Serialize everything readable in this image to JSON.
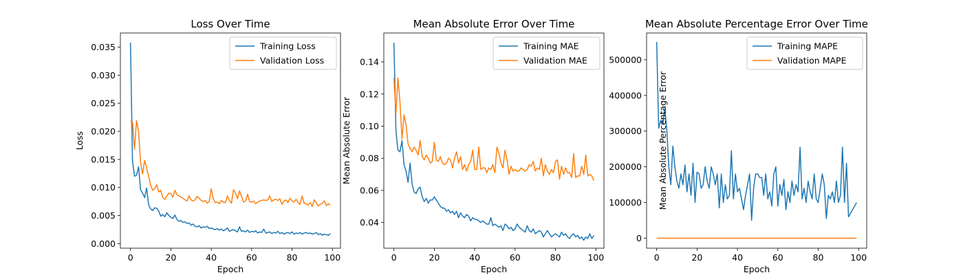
{
  "chart_data": [
    {
      "type": "line",
      "title": "Loss Over Time",
      "xlabel": "Epoch",
      "ylabel": "Loss",
      "xlim": [
        -5,
        104
      ],
      "ylim": [
        -0.0008,
        0.0375
      ],
      "xticks": [
        0,
        20,
        40,
        60,
        80,
        100
      ],
      "yticks": [
        0.0,
        0.005,
        0.01,
        0.015,
        0.02,
        0.025,
        0.03,
        0.035
      ],
      "ytick_labels": [
        "0.000",
        "0.005",
        "0.010",
        "0.015",
        "0.020",
        "0.025",
        "0.030",
        "0.035"
      ],
      "legend_position": "upper-right",
      "grid": false,
      "series": [
        {
          "name": "Training Loss",
          "color": "#1f77b4",
          "values": [
            0.0358,
            0.0148,
            0.012,
            0.0122,
            0.0137,
            0.0096,
            0.009,
            0.0082,
            0.0099,
            0.0069,
            0.0062,
            0.0059,
            0.0064,
            0.0063,
            0.0058,
            0.0049,
            0.0052,
            0.0048,
            0.0055,
            0.005,
            0.0047,
            0.0045,
            0.0051,
            0.0043,
            0.004,
            0.0041,
            0.0038,
            0.0039,
            0.0036,
            0.0037,
            0.0033,
            0.0035,
            0.0031,
            0.003,
            0.0032,
            0.0028,
            0.003,
            0.0029,
            0.0031,
            0.0027,
            0.0028,
            0.0026,
            0.0025,
            0.0027,
            0.0024,
            0.0026,
            0.0023,
            0.0025,
            0.0028,
            0.0022,
            0.0024,
            0.0025,
            0.0023,
            0.0021,
            0.003,
            0.0022,
            0.0023,
            0.0021,
            0.0024,
            0.002,
            0.0022,
            0.0021,
            0.0023,
            0.0019,
            0.0021,
            0.002,
            0.0026,
            0.0019,
            0.002,
            0.0021,
            0.0018,
            0.002,
            0.0019,
            0.0022,
            0.0018,
            0.002,
            0.0017,
            0.0019,
            0.002,
            0.0018,
            0.0021,
            0.0017,
            0.0019,
            0.0018,
            0.002,
            0.0017,
            0.0019,
            0.002,
            0.0018,
            0.0019,
            0.0017,
            0.0018,
            0.002,
            0.0016,
            0.0018,
            0.0015,
            0.0017,
            0.0016,
            0.0015,
            0.0018
          ]
        },
        {
          "name": "Validation Loss",
          "color": "#ff7f0e",
          "values": [
            0.0218,
            0.0216,
            0.0168,
            0.0219,
            0.02,
            0.0145,
            0.0124,
            0.0148,
            0.0135,
            0.012,
            0.0104,
            0.0095,
            0.0098,
            0.0105,
            0.0092,
            0.0095,
            0.0082,
            0.0079,
            0.0085,
            0.009,
            0.0089,
            0.0083,
            0.0095,
            0.0087,
            0.0085,
            0.0083,
            0.0081,
            0.0078,
            0.0076,
            0.0085,
            0.0078,
            0.0076,
            0.0078,
            0.0084,
            0.0081,
            0.0077,
            0.0075,
            0.0077,
            0.0072,
            0.0075,
            0.0098,
            0.008,
            0.0073,
            0.0074,
            0.0071,
            0.0077,
            0.0074,
            0.0073,
            0.0085,
            0.0077,
            0.0072,
            0.0096,
            0.009,
            0.008,
            0.0094,
            0.0084,
            0.0074,
            0.0076,
            0.0088,
            0.0075,
            0.0074,
            0.0076,
            0.0071,
            0.0074,
            0.0076,
            0.0077,
            0.0078,
            0.0077,
            0.0078,
            0.0085,
            0.0075,
            0.0078,
            0.0079,
            0.0077,
            0.008,
            0.007,
            0.0076,
            0.0078,
            0.0073,
            0.0081,
            0.0076,
            0.0074,
            0.0079,
            0.0073,
            0.007,
            0.0085,
            0.0072,
            0.0071,
            0.0069,
            0.0073,
            0.0066,
            0.0078,
            0.0073,
            0.0067,
            0.007,
            0.0072,
            0.0076,
            0.0068,
            0.0071,
            0.0069
          ]
        }
      ]
    },
    {
      "type": "line",
      "title": "Mean Absolute Error Over Time",
      "xlabel": "Epoch",
      "ylabel": "Mean Absolute Error",
      "xlim": [
        -5,
        104
      ],
      "ylim": [
        0.024,
        0.158
      ],
      "xticks": [
        0,
        20,
        40,
        60,
        80,
        100
      ],
      "yticks": [
        0.04,
        0.06,
        0.08,
        0.1,
        0.12,
        0.14
      ],
      "ytick_labels": [
        "0.04",
        "0.06",
        "0.08",
        "0.10",
        "0.12",
        "0.14"
      ],
      "legend_position": "upper-right",
      "grid": false,
      "series": [
        {
          "name": "Training MAE",
          "color": "#1f77b4",
          "values": [
            0.152,
            0.097,
            0.085,
            0.084,
            0.091,
            0.076,
            0.072,
            0.065,
            0.077,
            0.064,
            0.059,
            0.058,
            0.061,
            0.062,
            0.056,
            0.053,
            0.055,
            0.052,
            0.054,
            0.054,
            0.056,
            0.054,
            0.052,
            0.05,
            0.049,
            0.049,
            0.047,
            0.048,
            0.046,
            0.047,
            0.045,
            0.047,
            0.043,
            0.046,
            0.044,
            0.043,
            0.045,
            0.044,
            0.041,
            0.043,
            0.042,
            0.042,
            0.041,
            0.04,
            0.041,
            0.04,
            0.039,
            0.039,
            0.043,
            0.038,
            0.039,
            0.038,
            0.037,
            0.038,
            0.035,
            0.039,
            0.038,
            0.036,
            0.037,
            0.035,
            0.036,
            0.039,
            0.037,
            0.036,
            0.035,
            0.034,
            0.038,
            0.035,
            0.034,
            0.036,
            0.033,
            0.034,
            0.035,
            0.034,
            0.031,
            0.033,
            0.035,
            0.033,
            0.031,
            0.032,
            0.033,
            0.032,
            0.031,
            0.034,
            0.032,
            0.033,
            0.031,
            0.03,
            0.032,
            0.033,
            0.031,
            0.032,
            0.03,
            0.031,
            0.029,
            0.031,
            0.03,
            0.033,
            0.03,
            0.032
          ]
        },
        {
          "name": "Validation MAE",
          "color": "#ff7f0e",
          "values": [
            0.13,
            0.108,
            0.13,
            0.115,
            0.092,
            0.107,
            0.101,
            0.089,
            0.086,
            0.084,
            0.087,
            0.085,
            0.082,
            0.091,
            0.081,
            0.079,
            0.082,
            0.08,
            0.077,
            0.078,
            0.09,
            0.079,
            0.078,
            0.081,
            0.077,
            0.076,
            0.077,
            0.08,
            0.079,
            0.074,
            0.08,
            0.084,
            0.077,
            0.081,
            0.073,
            0.076,
            0.072,
            0.076,
            0.078,
            0.085,
            0.073,
            0.073,
            0.087,
            0.073,
            0.074,
            0.074,
            0.071,
            0.074,
            0.073,
            0.076,
            0.071,
            0.087,
            0.083,
            0.077,
            0.074,
            0.085,
            0.079,
            0.07,
            0.075,
            0.072,
            0.073,
            0.072,
            0.072,
            0.074,
            0.073,
            0.072,
            0.073,
            0.076,
            0.075,
            0.078,
            0.072,
            0.074,
            0.073,
            0.08,
            0.069,
            0.076,
            0.072,
            0.07,
            0.073,
            0.071,
            0.078,
            0.079,
            0.067,
            0.075,
            0.07,
            0.074,
            0.071,
            0.071,
            0.068,
            0.083,
            0.068,
            0.069,
            0.069,
            0.075,
            0.07,
            0.082,
            0.069,
            0.07,
            0.069,
            0.066
          ]
        }
      ]
    },
    {
      "type": "line",
      "title": "Mean Absolute Percentage Error Over Time",
      "xlabel": "Epoch",
      "ylabel": "Mean Absolute Percentage Error",
      "xlim": [
        -5,
        104
      ],
      "ylim": [
        -28000,
        575000
      ],
      "xticks": [
        0,
        20,
        40,
        60,
        80,
        100
      ],
      "yticks": [
        0,
        100000,
        200000,
        300000,
        400000,
        500000
      ],
      "ytick_labels": [
        "0",
        "100000",
        "200000",
        "300000",
        "400000",
        "500000"
      ],
      "legend_position": "upper-right",
      "grid": false,
      "series": [
        {
          "name": "Training MAPE",
          "color": "#1f77b4",
          "values": [
            550000,
            308000,
            330000,
            320000,
            362000,
            305000,
            200000,
            150000,
            258000,
            200000,
            160000,
            140000,
            180000,
            150000,
            205000,
            130000,
            180000,
            120000,
            210000,
            100000,
            185000,
            180000,
            140000,
            150000,
            200000,
            160000,
            140000,
            200000,
            180000,
            150000,
            180000,
            85000,
            180000,
            100000,
            150000,
            110000,
            120000,
            245000,
            110000,
            180000,
            130000,
            140000,
            110000,
            80000,
            120000,
            150000,
            180000,
            50000,
            140000,
            180000,
            180000,
            170000,
            170000,
            120000,
            180000,
            110000,
            130000,
            90000,
            180000,
            200000,
            90000,
            150000,
            120000,
            165000,
            80000,
            130000,
            100000,
            160000,
            120000,
            150000,
            130000,
            255000,
            110000,
            140000,
            100000,
            160000,
            130000,
            110000,
            180000,
            110000,
            100000,
            140000,
            180000,
            150000,
            55000,
            120000,
            110000,
            130000,
            100000,
            160000,
            100000,
            120000,
            255000,
            100000,
            210000,
            60000,
            70000,
            80000,
            90000,
            100000
          ]
        },
        {
          "name": "Validation MAPE",
          "color": "#ff7f0e",
          "values": [
            0,
            0,
            0,
            0,
            0,
            0,
            0,
            0,
            0,
            0,
            0,
            0,
            0,
            0,
            0,
            0,
            0,
            0,
            0,
            0,
            0,
            0,
            0,
            0,
            0,
            0,
            0,
            0,
            0,
            0,
            0,
            0,
            0,
            0,
            0,
            0,
            0,
            0,
            0,
            0,
            0,
            0,
            0,
            0,
            0,
            0,
            0,
            0,
            0,
            0,
            0,
            0,
            0,
            0,
            0,
            0,
            0,
            0,
            0,
            0,
            0,
            0,
            0,
            0,
            0,
            0,
            0,
            0,
            0,
            0,
            0,
            0,
            0,
            0,
            0,
            0,
            0,
            0,
            0,
            0,
            0,
            0,
            0,
            0,
            0,
            0,
            0,
            0,
            0,
            0,
            0,
            0,
            0,
            0,
            0,
            0,
            0,
            0,
            0,
            0
          ]
        }
      ]
    }
  ]
}
